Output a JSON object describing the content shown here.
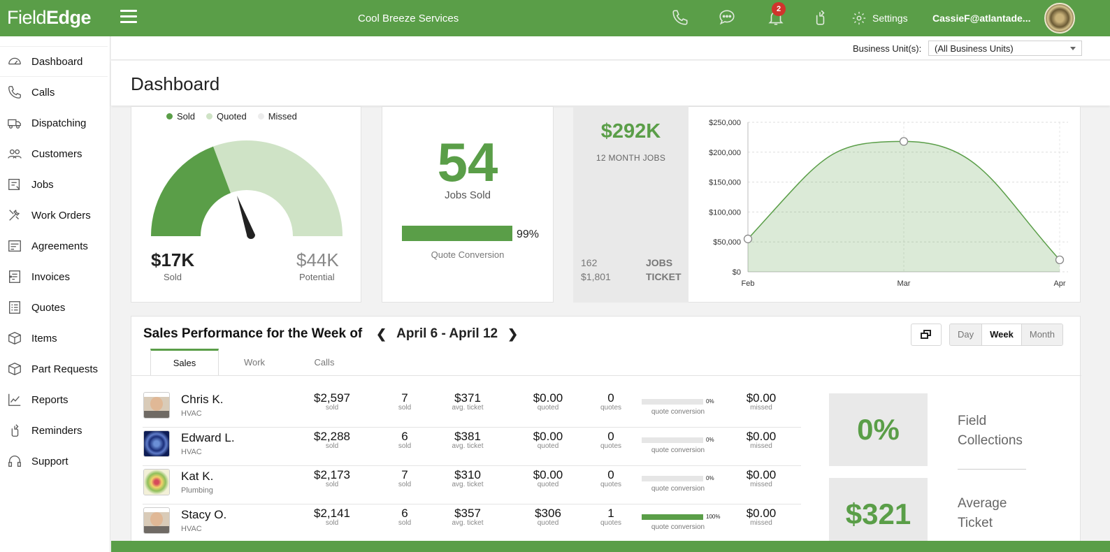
{
  "app": {
    "logo_part1": "Field",
    "logo_part2": "Edge",
    "company": "Cool Breeze Services",
    "notifications": "2",
    "settings_label": "Settings",
    "user": "CassieF@atlantade..."
  },
  "sidebar": {
    "items": [
      {
        "label": "Dashboard",
        "icon": "speedometer-icon"
      },
      {
        "label": "Calls",
        "icon": "phone-icon"
      },
      {
        "label": "Dispatching",
        "icon": "truck-icon"
      },
      {
        "label": "Customers",
        "icon": "people-icon"
      },
      {
        "label": "Jobs",
        "icon": "jobs-icon"
      },
      {
        "label": "Work Orders",
        "icon": "tools-icon"
      },
      {
        "label": "Agreements",
        "icon": "agreements-icon"
      },
      {
        "label": "Invoices",
        "icon": "invoice-icon"
      },
      {
        "label": "Quotes",
        "icon": "quotes-icon"
      },
      {
        "label": "Items",
        "icon": "box-icon"
      },
      {
        "label": "Part Requests",
        "icon": "part-request-icon"
      },
      {
        "label": "Reports",
        "icon": "reports-icon"
      },
      {
        "label": "Reminders",
        "icon": "reminder-icon"
      },
      {
        "label": "Support",
        "icon": "headset-icon"
      }
    ]
  },
  "filter": {
    "label": "Business Unit(s):",
    "value": "(All Business Units)"
  },
  "page_title": "Dashboard",
  "gauge": {
    "legend": [
      "Sold",
      "Quoted",
      "Missed"
    ],
    "sold_value": "$17K",
    "sold_label": "Sold",
    "potential_value": "$44K",
    "potential_label": "Potential",
    "sold_fraction": 0.386,
    "colors": {
      "sold": "#5a9e48",
      "quoted": "#cfe3c6",
      "missed": "#e8e8e8"
    }
  },
  "jobs": {
    "count": "54",
    "label": "Jobs Sold",
    "conversion_pct": "99%",
    "conversion_fraction": 0.99,
    "conversion_label": "Quote Conversion"
  },
  "stats": {
    "total": "$292K",
    "total_label": "12 MONTH JOBS",
    "jobs_count": "162",
    "jobs_label": "JOBS",
    "ticket_value": "$1,801",
    "ticket_label": "TICKET"
  },
  "chart_data": {
    "type": "area",
    "x": [
      "Feb",
      "Mar",
      "Apr"
    ],
    "series": [
      {
        "values": [
          55000,
          218000,
          20000
        ]
      }
    ],
    "y_ticks": [
      "$0",
      "$50,000",
      "$100,000",
      "$150,000",
      "$200,000",
      "$250,000"
    ],
    "ylim": [
      0,
      250000
    ],
    "grid": true,
    "color": "#5a9e48"
  },
  "sales": {
    "title": "Sales Performance for the Week of",
    "week": "April 6 - April 12",
    "range_options": [
      "Day",
      "Week",
      "Month"
    ],
    "tabs": [
      "Sales",
      "Work",
      "Calls"
    ],
    "captions": {
      "sold": "sold",
      "ticket": "avg. ticket",
      "quoted": "quoted",
      "quotes": "quotes",
      "missed": "missed",
      "conversion": "quote conversion"
    },
    "rows": [
      {
        "name": "Chris K.",
        "dept": "HVAC",
        "sold_amount": "$2,597",
        "sold_count": "7",
        "avg_ticket": "$371",
        "quoted": "$0.00",
        "quotes": "0",
        "conversion": "0%",
        "conversion_fraction": 0,
        "missed": "$0.00",
        "avatar": "person-photo"
      },
      {
        "name": "Edward L.",
        "dept": "HVAC",
        "sold_amount": "$2,288",
        "sold_count": "6",
        "avg_ticket": "$381",
        "quoted": "$0.00",
        "quotes": "0",
        "conversion": "0%",
        "conversion_fraction": 0,
        "missed": "$0.00",
        "avatar": "blue-pattern"
      },
      {
        "name": "Kat K.",
        "dept": "Plumbing",
        "sold_amount": "$2,173",
        "sold_count": "7",
        "avg_ticket": "$310",
        "quoted": "$0.00",
        "quotes": "0",
        "conversion": "0%",
        "conversion_fraction": 0,
        "missed": "$0.00",
        "avatar": "flower-pattern"
      },
      {
        "name": "Stacy O.",
        "dept": "HVAC",
        "sold_amount": "$2,141",
        "sold_count": "6",
        "avg_ticket": "$357",
        "quoted": "$306",
        "quotes": "1",
        "conversion": "100%",
        "conversion_fraction": 1,
        "missed": "$0.00",
        "avatar": "person-photo"
      }
    ],
    "kpis": [
      {
        "value": "0%",
        "label_line1": "Field",
        "label_line2": "Collections"
      },
      {
        "value": "$321",
        "label_line1": "Average",
        "label_line2": "Ticket"
      }
    ]
  }
}
